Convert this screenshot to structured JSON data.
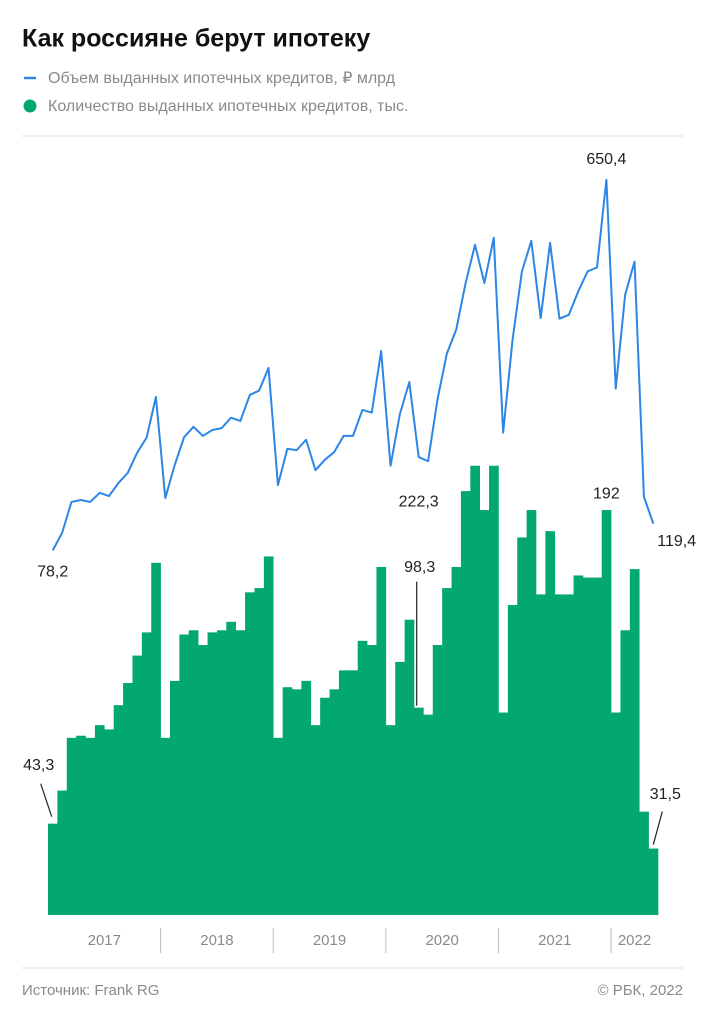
{
  "chart_data": {
    "type": "bar-line",
    "title": "Как россияне берут ипотеку",
    "years": [
      "2017",
      "2018",
      "2019",
      "2020",
      "2021",
      "2022"
    ],
    "ylim": [
      0,
      220
    ],
    "y2lim": [
      0,
      681
    ],
    "series": [
      {
        "name": "Объем выданных ипотечных кредитов, ₽ млрд",
        "type": "line",
        "axis": "y2",
        "color": "#2b86e6",
        "values": [
          78.2,
          105,
          153,
          156,
          153,
          167,
          162,
          182,
          198,
          229,
          252,
          315,
          159,
          210,
          253,
          269,
          255,
          264,
          267,
          283,
          278,
          318,
          325,
          360,
          179,
          235,
          233,
          249,
          202,
          218,
          230,
          255,
          255,
          295,
          291,
          386,
          209,
          289,
          338,
          222.3,
          216,
          311,
          382,
          419,
          491,
          550,
          491,
          561,
          260,
          403,
          509,
          556,
          437,
          553,
          436,
          442,
          478,
          509,
          515,
          650.4,
          328,
          473,
          524,
          161,
          119.4
        ],
        "value_labels": [
          "78,2",
          null,
          null,
          null,
          null,
          null,
          null,
          null,
          null,
          null,
          null,
          null,
          null,
          null,
          null,
          null,
          null,
          null,
          null,
          null,
          null,
          null,
          null,
          null,
          null,
          null,
          null,
          null,
          null,
          null,
          null,
          null,
          null,
          null,
          null,
          null,
          null,
          null,
          null,
          "222,3",
          null,
          null,
          null,
          null,
          null,
          null,
          null,
          null,
          null,
          null,
          null,
          null,
          null,
          null,
          null,
          null,
          null,
          null,
          null,
          "650,4",
          null,
          null,
          null,
          null,
          "119,4"
        ]
      },
      {
        "name": "Количество выданных ипотечных кредитов, тыс.",
        "type": "bar",
        "axis": "y",
        "color": "#03a772",
        "values": [
          43.3,
          59,
          84,
          85,
          84,
          90,
          88,
          99.5,
          110,
          123,
          134,
          167,
          84,
          111,
          133,
          135,
          128,
          134,
          135,
          139,
          135,
          153,
          155,
          170,
          84,
          108,
          107,
          111,
          90,
          103,
          107,
          116,
          116,
          130,
          128,
          165,
          90,
          120,
          140,
          98.3,
          95,
          128,
          155,
          165,
          201,
          213,
          192,
          213,
          96,
          147,
          179,
          192,
          152,
          182,
          152,
          152,
          161,
          160,
          160,
          192,
          96,
          135,
          164,
          49,
          31.5
        ],
        "value_labels": [
          "43,3",
          null,
          null,
          null,
          null,
          null,
          null,
          null,
          null,
          null,
          null,
          null,
          null,
          null,
          null,
          null,
          null,
          null,
          null,
          null,
          null,
          null,
          null,
          null,
          null,
          null,
          null,
          null,
          null,
          null,
          null,
          null,
          null,
          null,
          null,
          null,
          null,
          null,
          null,
          "98,3",
          null,
          null,
          null,
          null,
          null,
          null,
          null,
          null,
          null,
          null,
          null,
          null,
          null,
          null,
          null,
          null,
          null,
          null,
          null,
          "192",
          null,
          null,
          null,
          null,
          "31,5"
        ]
      }
    ],
    "source": "Источник: Frank RG",
    "copyright": "© РБК, 2022"
  }
}
